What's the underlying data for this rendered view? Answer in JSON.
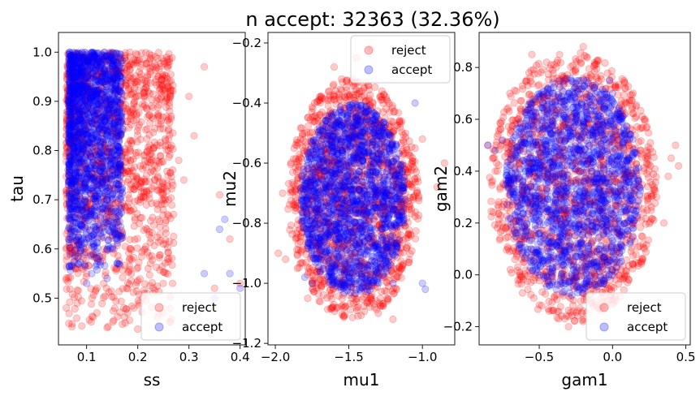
{
  "suptitle": "n accept: 32363 (32.36%)",
  "chart_data": [
    {
      "type": "scatter",
      "xlabel": "ss",
      "ylabel": "tau",
      "xlim": [
        0.045,
        0.41
      ],
      "ylim": [
        0.405,
        1.04
      ],
      "xticks": [
        "0.1",
        "0.2",
        "0.3",
        "0.4"
      ],
      "xtick_values": [
        0.1,
        0.2,
        0.3,
        0.4
      ],
      "yticks": [
        "0.5",
        "0.6",
        "0.7",
        "0.8",
        "0.9",
        "1.0"
      ],
      "ytick_values": [
        0.5,
        0.6,
        0.7,
        0.8,
        0.9,
        1.0
      ],
      "ytick_side": "left",
      "legend": {
        "loc": "lower right",
        "entries": [
          "reject",
          "accept"
        ]
      },
      "series": [
        {
          "name": "reject",
          "color": "#ff0000",
          "alpha": 0.2,
          "cloud": {
            "shape": "box",
            "x_range": [
              0.06,
              0.27
            ],
            "y_range": [
              0.43,
              1.0
            ]
          },
          "points": [
            [
              0.22,
              0.56
            ],
            [
              0.25,
              0.61
            ],
            [
              0.3,
              0.91
            ],
            [
              0.33,
              0.97
            ],
            [
              0.28,
              0.78
            ],
            [
              0.26,
              0.7
            ],
            [
              0.24,
              0.66
            ],
            [
              0.18,
              0.47
            ],
            [
              0.14,
              0.44
            ],
            [
              0.12,
              0.47
            ],
            [
              0.1,
              0.55
            ],
            [
              0.08,
              0.6
            ],
            [
              0.23,
              0.51
            ],
            [
              0.27,
              0.67
            ],
            [
              0.29,
              0.74
            ],
            [
              0.31,
              0.83
            ],
            [
              0.35,
              0.52
            ],
            [
              0.4,
              0.53
            ],
            [
              0.38,
              0.62
            ],
            [
              0.36,
              0.71
            ]
          ]
        },
        {
          "name": "accept",
          "color": "#0000ff",
          "alpha": 0.2,
          "cloud": {
            "shape": "box",
            "x_range": [
              0.065,
              0.17
            ],
            "y_range": [
              0.55,
              1.0
            ]
          },
          "points": [
            [
              0.37,
              0.66
            ],
            [
              0.36,
              0.64
            ],
            [
              0.33,
              0.55
            ],
            [
              0.38,
              0.55
            ],
            [
              0.4,
              0.52
            ],
            [
              0.11,
              0.55
            ],
            [
              0.14,
              0.54
            ],
            [
              0.16,
              0.57
            ],
            [
              0.35,
              0.5
            ],
            [
              0.1,
              0.53
            ]
          ]
        }
      ]
    },
    {
      "type": "scatter",
      "xlabel": "mu1",
      "ylabel": "mu2",
      "xlim": [
        -2.05,
        -0.78
      ],
      "ylim": [
        -1.205,
        -0.165
      ],
      "xticks": [
        "−2.0",
        "−1.5",
        "−1.0"
      ],
      "xtick_values": [
        -2.0,
        -1.5,
        -1.0
      ],
      "yticks": [
        "−1.2",
        "−1.0",
        "−0.8",
        "−0.6",
        "−0.4",
        "−0.2"
      ],
      "ytick_values": [
        -1.2,
        -1.0,
        -0.8,
        -0.6,
        -0.4,
        -0.2
      ],
      "ytick_side": "left-outside",
      "legend": {
        "loc": "upper right",
        "entries": [
          "reject",
          "accept"
        ]
      },
      "series": [
        {
          "name": "reject",
          "color": "#ff0000",
          "alpha": 0.2,
          "cloud": {
            "shape": "ellipse",
            "center": [
              -1.47,
              -0.72
            ],
            "radius": [
              0.4,
              0.4
            ]
          },
          "points": [
            [
              -1.93,
              -0.92
            ],
            [
              -1.85,
              -0.95
            ],
            [
              -1.78,
              -1.05
            ],
            [
              -1.3,
              -1.1
            ],
            [
              -1.2,
              -1.12
            ],
            [
              -1.55,
              -0.32
            ],
            [
              -1.6,
              -0.28
            ],
            [
              -1.45,
              -0.25
            ],
            [
              -1.35,
              -0.22
            ],
            [
              -1.05,
              -0.55
            ],
            [
              -1.0,
              -0.52
            ],
            [
              -0.9,
              -0.68
            ],
            [
              -0.85,
              -0.6
            ],
            [
              -1.95,
              -0.7
            ],
            [
              -1.98,
              -0.9
            ]
          ]
        },
        {
          "name": "accept",
          "color": "#0000ff",
          "alpha": 0.2,
          "cloud": {
            "shape": "ellipse",
            "center": [
              -1.47,
              -0.72
            ],
            "radius": [
              0.32,
              0.32
            ]
          },
          "points": [
            [
              -1.0,
              -1.0
            ],
            [
              -0.98,
              -1.02
            ],
            [
              -1.8,
              -0.98
            ],
            [
              -1.75,
              -1.0
            ],
            [
              -1.2,
              -1.0
            ],
            [
              -1.05,
              -0.4
            ]
          ]
        }
      ]
    },
    {
      "type": "scatter",
      "xlabel": "gam1",
      "ylabel": "gam2",
      "xlim": [
        -0.91,
        0.53
      ],
      "ylim": [
        -0.27,
        0.935
      ],
      "xticks": [
        "−0.5",
        "0.0",
        "0.5"
      ],
      "xtick_values": [
        -0.5,
        0.0,
        0.5
      ],
      "yticks": [
        "−0.2",
        "0.0",
        "0.2",
        "0.4",
        "0.6",
        "0.8"
      ],
      "ytick_values": [
        -0.2,
        0.0,
        0.2,
        0.4,
        0.6,
        0.8
      ],
      "ytick_side": "left-outside",
      "legend": {
        "loc": "lower right",
        "entries": [
          "reject",
          "accept"
        ]
      },
      "series": [
        {
          "name": "reject",
          "color": "#ff0000",
          "alpha": 0.2,
          "cloud": {
            "shape": "ellipse",
            "center": [
              -0.27,
              0.34
            ],
            "radius": [
              0.52,
              0.52
            ]
          },
          "points": [
            [
              0.4,
              0.45
            ],
            [
              0.43,
              0.5
            ],
            [
              0.45,
              0.42
            ],
            [
              0.38,
              0.38
            ],
            [
              0.3,
              0.3
            ],
            [
              -0.55,
              0.85
            ],
            [
              -0.45,
              0.82
            ],
            [
              -0.2,
              0.88
            ],
            [
              -0.7,
              0.7
            ],
            [
              -0.8,
              0.4
            ],
            [
              -0.85,
              0.5
            ],
            [
              -0.75,
              0.2
            ],
            [
              -0.3,
              -0.2
            ],
            [
              -0.2,
              -0.18
            ],
            [
              0.2,
              0.05
            ],
            [
              0.35,
              0.2
            ]
          ]
        },
        {
          "name": "accept",
          "color": "#0000ff",
          "alpha": 0.2,
          "cloud": {
            "shape": "ellipse",
            "center": [
              -0.27,
              0.34
            ],
            "radius": [
              0.42,
              0.42
            ]
          },
          "points": [
            [
              -0.02,
              0.75
            ],
            [
              0.0,
              0.7
            ],
            [
              0.05,
              0.6
            ],
            [
              -0.8,
              0.48
            ],
            [
              -0.75,
              0.52
            ],
            [
              -0.85,
              0.5
            ],
            [
              -0.7,
              0.35
            ],
            [
              0.05,
              0.55
            ]
          ]
        }
      ]
    }
  ]
}
